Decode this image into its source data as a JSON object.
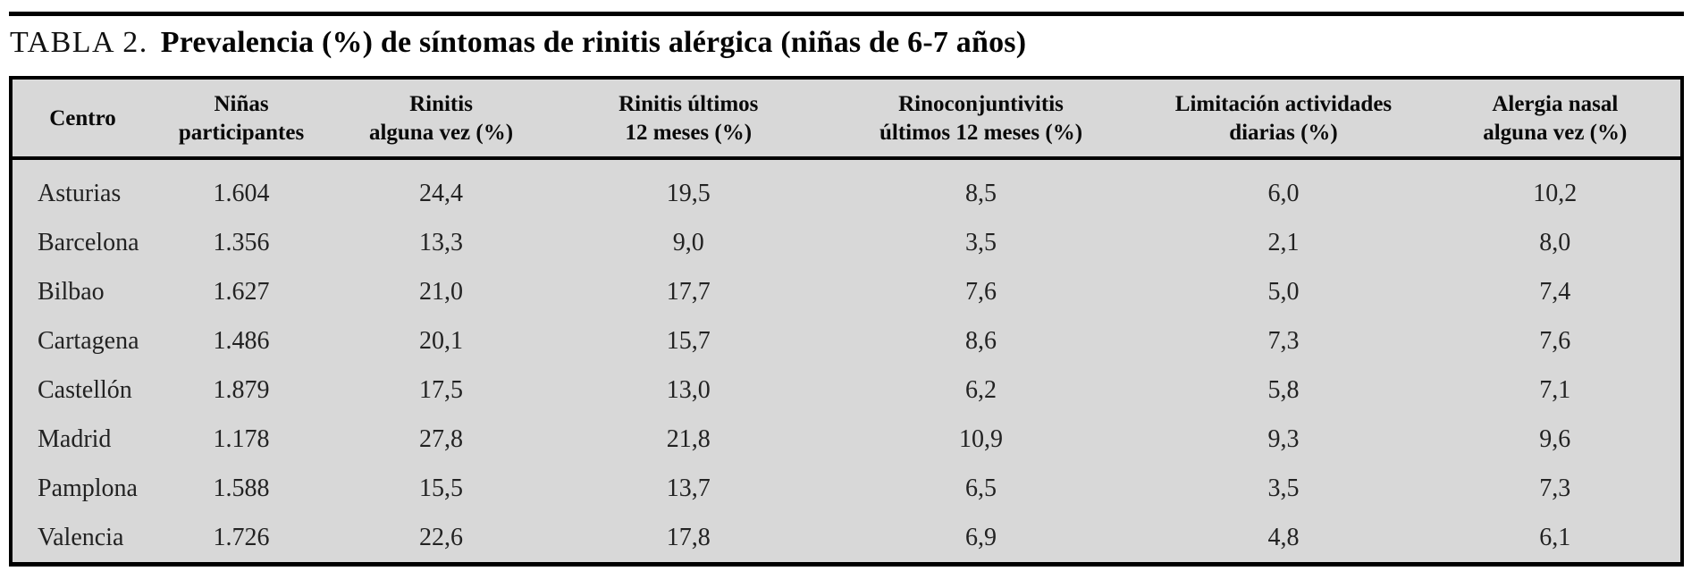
{
  "document": {
    "table_label": "TABLA 2.",
    "title": "Prevalencia (%) de síntomas de rinitis alérgica (niñas de 6-7 años)"
  },
  "table": {
    "columns": [
      "Centro",
      "Niñas\nparticipantes",
      "Rinitis\nalguna vez (%)",
      "Rinitis últimos\n12 meses (%)",
      "Rinoconjuntivitis\núltimos 12 meses (%)",
      "Limitación actividades\ndiarias (%)",
      "Alergia nasal\nalguna vez (%)"
    ],
    "rows": [
      [
        "Asturias",
        "1.604",
        "24,4",
        "19,5",
        "8,5",
        "6,0",
        "10,2"
      ],
      [
        "Barcelona",
        "1.356",
        "13,3",
        "9,0",
        "3,5",
        "2,1",
        "8,0"
      ],
      [
        "Bilbao",
        "1.627",
        "21,0",
        "17,7",
        "7,6",
        "5,0",
        "7,4"
      ],
      [
        "Cartagena",
        "1.486",
        "20,1",
        "15,7",
        "8,6",
        "7,3",
        "7,6"
      ],
      [
        "Castellón",
        "1.879",
        "17,5",
        "13,0",
        "6,2",
        "5,8",
        "7,1"
      ],
      [
        "Madrid",
        "1.178",
        "27,8",
        "21,8",
        "10,9",
        "9,3",
        "9,6"
      ],
      [
        "Pamplona",
        "1.588",
        "15,5",
        "13,7",
        "6,5",
        "3,5",
        "7,3"
      ],
      [
        "Valencia",
        "1.726",
        "22,6",
        "17,8",
        "6,9",
        "4,8",
        "6,1"
      ]
    ],
    "colors": {
      "table_background": "#d8d8d8",
      "border": "#000000",
      "text": "#1a1a1a"
    }
  }
}
